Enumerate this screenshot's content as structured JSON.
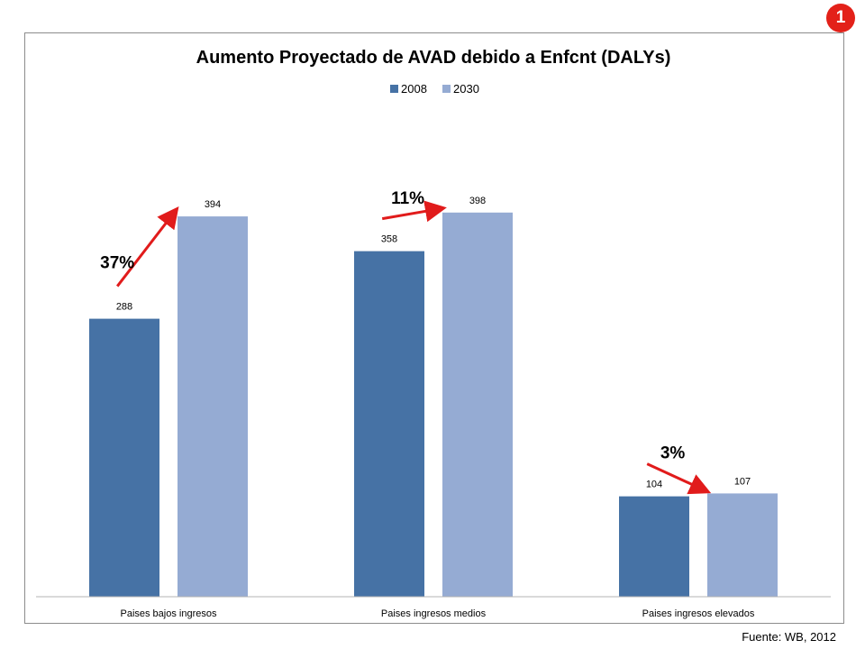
{
  "slide": {
    "badge": "1",
    "source": "Fuente: WB, 2012"
  },
  "colors": {
    "series_2008": "#4672a5",
    "series_2030": "#95abd3",
    "arrow": "#e11b1b"
  },
  "chart_data": {
    "type": "bar",
    "title": "Aumento Proyectado de AVAD debido a Enfcnt (DALYs)",
    "categories": [
      "Paises bajos ingresos",
      "Paises ingresos medios",
      "Paises ingresos elevados"
    ],
    "series": [
      {
        "name": "2008",
        "values": [
          288,
          358,
          104
        ]
      },
      {
        "name": "2030",
        "values": [
          394,
          398,
          107
        ]
      }
    ],
    "data_labels": [
      [
        "288",
        "358",
        "104"
      ],
      [
        "394",
        "398",
        "107"
      ]
    ],
    "annotations": [
      "37%",
      "11%",
      "3%"
    ],
    "ylim": [
      0,
      480
    ],
    "legend": "top-center",
    "grid": false,
    "xlabel": "",
    "ylabel": ""
  }
}
